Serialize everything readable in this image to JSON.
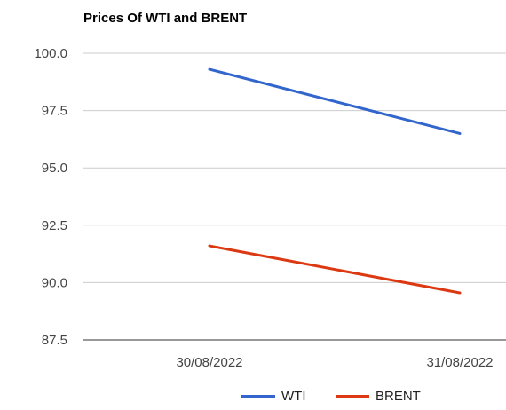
{
  "chart_data": {
    "type": "line",
    "title": "Prices Of WTI and BRENT",
    "xlabel": "",
    "ylabel": "",
    "categories": [
      "30/08/2022",
      "31/08/2022"
    ],
    "series": [
      {
        "name": "WTI",
        "values": [
          99.3,
          96.5
        ],
        "color": "#3366cc"
      },
      {
        "name": "BRENT",
        "values": [
          91.6,
          89.55
        ],
        "color": "#dc3912"
      }
    ],
    "ylim": [
      87.5,
      100.0
    ],
    "yticks": [
      "100.0",
      "97.5",
      "95.0",
      "92.5",
      "90.0",
      "87.5"
    ],
    "grid": true,
    "legend_position": "bottom"
  }
}
